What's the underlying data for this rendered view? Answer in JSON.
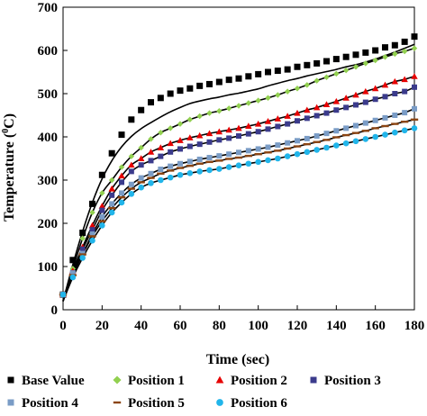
{
  "chart_data": {
    "type": "line",
    "title": "",
    "xlabel": "Time (sec)",
    "ylabel": "Temperature (°C)",
    "ylabel_main": "Temperature (",
    "ylabel_sup": "0",
    "ylabel_tail": "C)",
    "xlim": [
      0,
      180
    ],
    "ylim": [
      0,
      700
    ],
    "xticks": [
      0,
      20,
      40,
      60,
      80,
      100,
      120,
      140,
      160,
      180
    ],
    "yticks": [
      0,
      100,
      200,
      300,
      400,
      500,
      600,
      700
    ],
    "grid": false,
    "legend_position": "bottom",
    "x": [
      0,
      5,
      10,
      15,
      20,
      25,
      30,
      35,
      40,
      45,
      50,
      55,
      60,
      65,
      70,
      75,
      80,
      85,
      90,
      95,
      100,
      105,
      110,
      115,
      120,
      125,
      130,
      135,
      140,
      145,
      150,
      155,
      160,
      165,
      170,
      175,
      180
    ],
    "series": [
      {
        "name": "Base Value",
        "marker": "square",
        "color": "#000000",
        "values": [
          35,
          115,
          178,
          245,
          312,
          362,
          405,
          440,
          462,
          480,
          490,
          500,
          507,
          512,
          518,
          522,
          527,
          532,
          535,
          540,
          545,
          550,
          553,
          556,
          562,
          566,
          570,
          575,
          580,
          585,
          590,
          595,
          600,
          607,
          612,
          620,
          632
        ],
        "fit": [
          20,
          104,
          181,
          248,
          303,
          345,
          377,
          401,
          419,
          433,
          446,
          458,
          468,
          477,
          483,
          488,
          492,
          497,
          501,
          506,
          511,
          518,
          524,
          530,
          535,
          541,
          546,
          551,
          556,
          562,
          567,
          573,
          580,
          588,
          596,
          605,
          614
        ]
      },
      {
        "name": "Position 1",
        "marker": "diamond",
        "color": "#92d050",
        "values": [
          35,
          95,
          165,
          225,
          270,
          300,
          330,
          355,
          375,
          395,
          410,
          420,
          430,
          440,
          448,
          455,
          460,
          466,
          472,
          478,
          484,
          490,
          497,
          505,
          512,
          520,
          530,
          538,
          546,
          554,
          562,
          570,
          577,
          585,
          592,
          598,
          605
        ]
      },
      {
        "name": "Position 2",
        "marker": "triangle",
        "color": "#e60000",
        "values": [
          35,
          90,
          145,
          195,
          240,
          280,
          310,
          335,
          350,
          365,
          375,
          385,
          392,
          398,
          403,
          408,
          412,
          416,
          420,
          425,
          430,
          436,
          442,
          448,
          455,
          462,
          468,
          475,
          482,
          490,
          497,
          505,
          512,
          520,
          528,
          533,
          540
        ]
      },
      {
        "name": "Position 3",
        "marker": "square",
        "color": "#3b3b8c",
        "values": [
          35,
          85,
          140,
          185,
          230,
          265,
          295,
          320,
          335,
          345,
          355,
          365,
          372,
          378,
          383,
          388,
          393,
          397,
          402,
          407,
          412,
          418,
          424,
          430,
          437,
          443,
          449,
          455,
          462,
          468,
          474,
          480,
          487,
          493,
          500,
          505,
          515
        ]
      },
      {
        "name": "Position 4",
        "marker": "square",
        "color": "#7a9cc6",
        "values": [
          35,
          85,
          130,
          175,
          215,
          245,
          270,
          290,
          305,
          315,
          325,
          332,
          338,
          343,
          348,
          352,
          356,
          360,
          364,
          368,
          372,
          376,
          381,
          386,
          391,
          396,
          402,
          408,
          414,
          420,
          426,
          432,
          438,
          444,
          450,
          456,
          465
        ]
      },
      {
        "name": "Position 5",
        "marker": "dash",
        "color": "#8b4513",
        "values": [
          35,
          80,
          128,
          170,
          205,
          235,
          260,
          280,
          295,
          305,
          315,
          322,
          328,
          333,
          338,
          342,
          345,
          349,
          352,
          356,
          360,
          364,
          368,
          373,
          378,
          383,
          388,
          393,
          399,
          404,
          409,
          414,
          420,
          425,
          430,
          435,
          440
        ]
      },
      {
        "name": "Position 6",
        "marker": "circle",
        "color": "#21b5ea",
        "values": [
          35,
          75,
          120,
          160,
          195,
          225,
          248,
          268,
          283,
          293,
          300,
          306,
          312,
          316,
          320,
          323,
          326,
          330,
          334,
          338,
          342,
          346,
          350,
          355,
          360,
          365,
          370,
          375,
          380,
          385,
          390,
          395,
          400,
          405,
          410,
          415,
          420
        ]
      }
    ]
  }
}
